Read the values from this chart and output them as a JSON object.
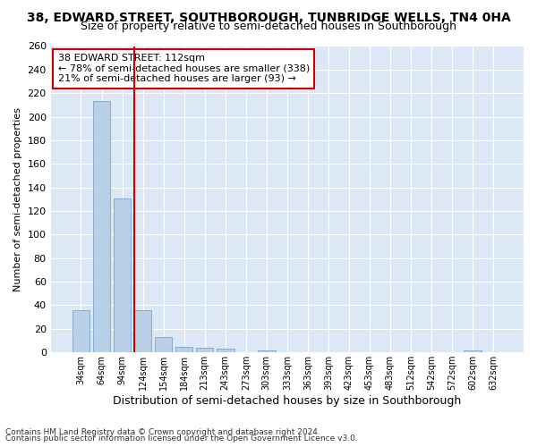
{
  "title": "38, EDWARD STREET, SOUTHBOROUGH, TUNBRIDGE WELLS, TN4 0HA",
  "subtitle": "Size of property relative to semi-detached houses in Southborough",
  "xlabel": "Distribution of semi-detached houses by size in Southborough",
  "ylabel": "Number of semi-detached properties",
  "categories": [
    "34sqm",
    "64sqm",
    "94sqm",
    "124sqm",
    "154sqm",
    "184sqm",
    "213sqm",
    "243sqm",
    "273sqm",
    "303sqm",
    "333sqm",
    "363sqm",
    "393sqm",
    "423sqm",
    "453sqm",
    "483sqm",
    "512sqm",
    "542sqm",
    "572sqm",
    "602sqm",
    "632sqm"
  ],
  "values": [
    36,
    213,
    131,
    36,
    13,
    5,
    4,
    3,
    0,
    2,
    0,
    0,
    0,
    0,
    0,
    0,
    0,
    0,
    0,
    2,
    0
  ],
  "bar_color": "#b8d0e8",
  "bar_edgecolor": "#6699cc",
  "vline_color": "#cc0000",
  "annotation_text": "38 EDWARD STREET: 112sqm\n← 78% of semi-detached houses are smaller (338)\n21% of semi-detached houses are larger (93) →",
  "annotation_box_color": "#ffffff",
  "annotation_box_edgecolor": "#cc0000",
  "ylim": [
    0,
    260
  ],
  "yticks": [
    0,
    20,
    40,
    60,
    80,
    100,
    120,
    140,
    160,
    180,
    200,
    220,
    240,
    260
  ],
  "plot_bg_color": "#dce8f5",
  "fig_bg_color": "#ffffff",
  "footer_line1": "Contains HM Land Registry data © Crown copyright and database right 2024.",
  "footer_line2": "Contains public sector information licensed under the Open Government Licence v3.0.",
  "title_fontsize": 10,
  "subtitle_fontsize": 9,
  "xlabel_fontsize": 9,
  "ylabel_fontsize": 8,
  "annot_fontsize": 8
}
